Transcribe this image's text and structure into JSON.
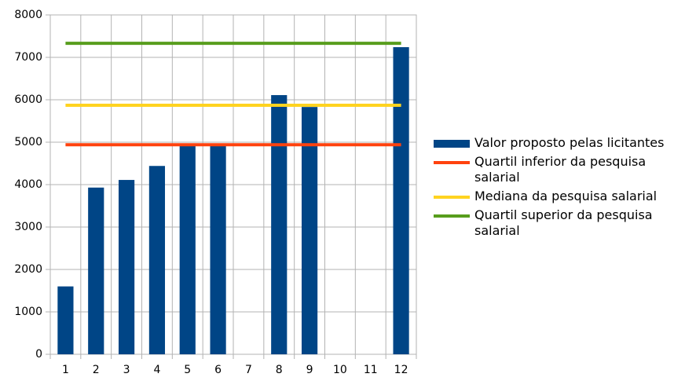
{
  "chart_data": {
    "type": "bar",
    "categories": [
      "1",
      "2",
      "3",
      "4",
      "5",
      "6",
      "7",
      "8",
      "9",
      "10",
      "11",
      "12"
    ],
    "series": [
      {
        "name": "Valor proposto pelas licitantes",
        "type": "bar",
        "color": "#004586",
        "values": [
          1600,
          3930,
          4110,
          4440,
          4940,
          4940,
          null,
          6110,
          5830,
          null,
          null,
          7240
        ]
      },
      {
        "name": "Quartil inferior da pesquisa salarial",
        "type": "line",
        "color": "#ff420e",
        "values": [
          4940,
          4940,
          4940,
          4940,
          4940,
          4940,
          4940,
          4940,
          4940,
          4940,
          4940,
          4940
        ]
      },
      {
        "name": "Mediana da pesquisa salarial",
        "type": "line",
        "color": "#ffd320",
        "values": [
          5870,
          5870,
          5870,
          5870,
          5870,
          5870,
          5870,
          5870,
          5870,
          5870,
          5870,
          5870
        ]
      },
      {
        "name": "Quartil superior da pesquisa salarial",
        "type": "line",
        "color": "#579d1c",
        "values": [
          7330,
          7330,
          7330,
          7330,
          7330,
          7330,
          7330,
          7330,
          7330,
          7330,
          7330,
          7330
        ]
      }
    ],
    "ylim": [
      0,
      8000
    ],
    "yticks": [
      0,
      1000,
      2000,
      3000,
      4000,
      5000,
      6000,
      7000,
      8000
    ],
    "grid": true,
    "legend": "right"
  }
}
